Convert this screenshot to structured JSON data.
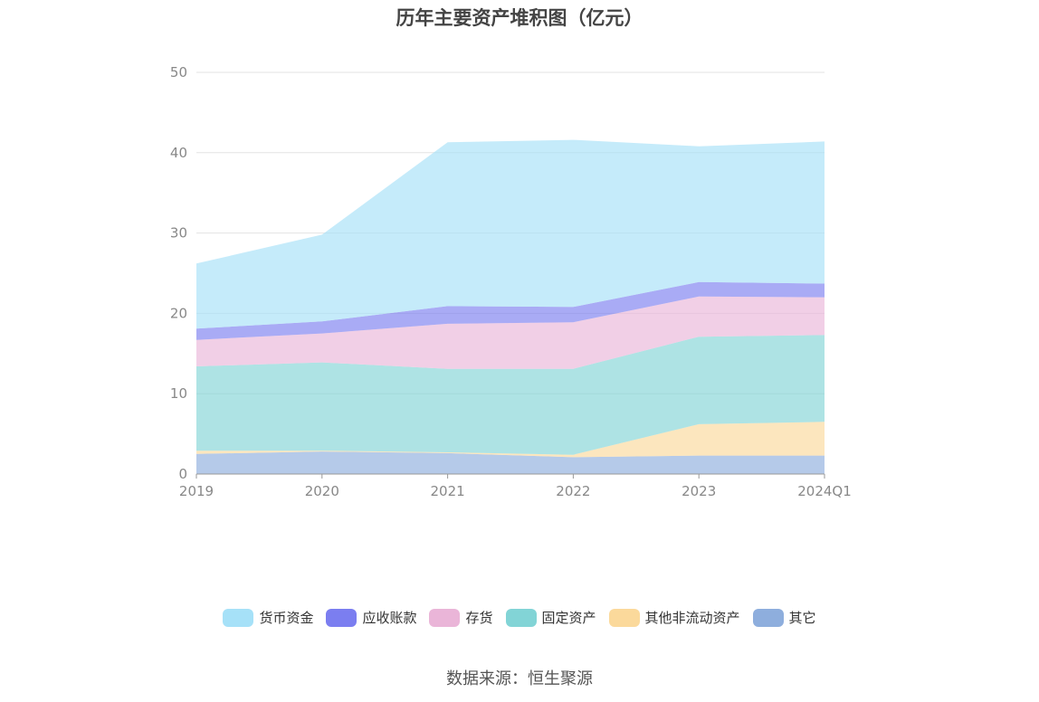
{
  "chart_data": {
    "type": "area",
    "stacked": true,
    "title": "历年主要资产堆积图（亿元）",
    "categories": [
      "2019",
      "2020",
      "2021",
      "2022",
      "2023",
      "2024Q1"
    ],
    "ylim": [
      0,
      50
    ],
    "yticks": [
      0,
      10,
      20,
      30,
      40,
      50
    ],
    "grid": true,
    "legend_position": "bottom",
    "series": [
      {
        "name": "其它",
        "color": "#8eaedd",
        "values": [
          2.5,
          2.8,
          2.6,
          2.1,
          2.3,
          2.3
        ]
      },
      {
        "name": "其他非流动资产",
        "color": "#fbd99b",
        "values": [
          0.4,
          0.1,
          0.1,
          0.3,
          3.9,
          4.2
        ]
      },
      {
        "name": "固定资产",
        "color": "#82d4d6",
        "values": [
          10.5,
          11.0,
          10.4,
          10.7,
          10.9,
          10.8
        ]
      },
      {
        "name": "存货",
        "color": "#eab5d8",
        "values": [
          3.3,
          3.6,
          5.6,
          5.8,
          5.0,
          4.7
        ]
      },
      {
        "name": "应收账款",
        "color": "#7b7ef0",
        "values": [
          1.4,
          1.5,
          2.2,
          1.9,
          1.8,
          1.7
        ]
      },
      {
        "name": "货币资金",
        "color": "#a6e1f8",
        "values": [
          8.1,
          10.8,
          20.4,
          20.8,
          16.9,
          17.7
        ]
      }
    ]
  },
  "legend": [
    {
      "label": "货币资金",
      "color": "#a6e1f8"
    },
    {
      "label": "应收账款",
      "color": "#7b7ef0"
    },
    {
      "label": "存货",
      "color": "#eab5d8"
    },
    {
      "label": "固定资产",
      "color": "#82d4d6"
    },
    {
      "label": "其他非流动资产",
      "color": "#fbd99b"
    },
    {
      "label": "其它",
      "color": "#8eaedd"
    }
  ],
  "source": "数据来源：恒生聚源"
}
